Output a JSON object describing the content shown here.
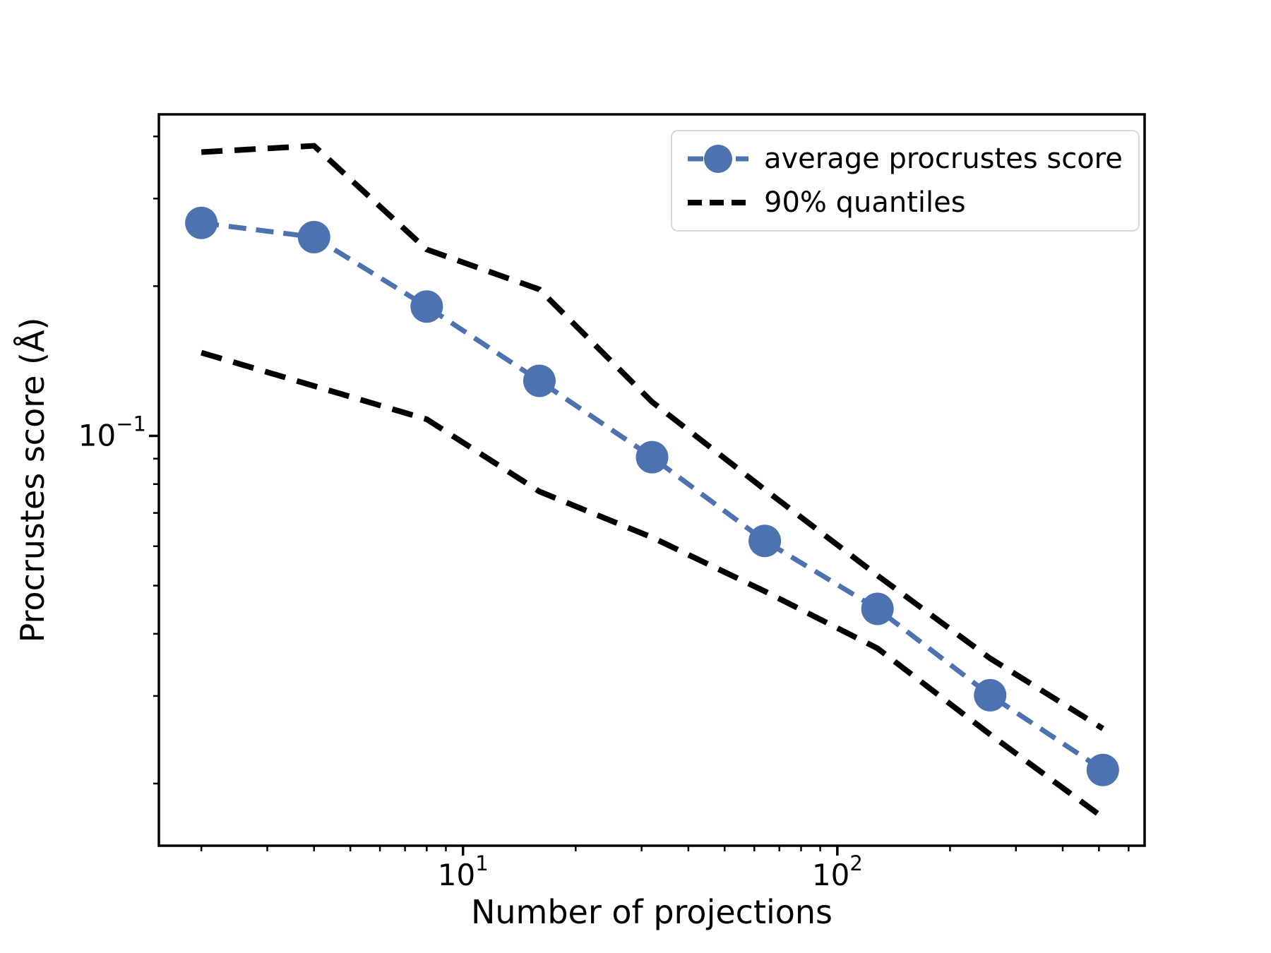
{
  "figure": {
    "background": "#ffffff"
  },
  "chart_data": {
    "type": "line",
    "x_scale": "log",
    "y_scale": "log",
    "x": [
      2,
      4,
      8,
      16,
      32,
      64,
      128,
      256,
      512
    ],
    "series": [
      {
        "name": "average procrustes score",
        "values": [
          0.268,
          0.251,
          0.182,
          0.129,
          0.0906,
          0.0615,
          0.0449,
          0.0301,
          0.0213
        ],
        "color": "#4C72B0",
        "style": "dashed-line-with-circle-markers"
      },
      {
        "name": "90% quantile (upper)",
        "values": [
          0.372,
          0.383,
          0.237,
          0.197,
          0.117,
          0.078,
          0.0524,
          0.0357,
          0.0258
        ],
        "color": "#000000",
        "style": "dashed-line"
      },
      {
        "name": "90% quantile (lower)",
        "values": [
          0.147,
          0.126,
          0.108,
          0.0773,
          0.0625,
          0.0487,
          0.0374,
          0.0251,
          0.0171
        ],
        "color": "#000000",
        "style": "dashed-line"
      }
    ],
    "xlabel": "Number of projections",
    "ylabel": "Procrustes score (Å)",
    "xlim": [
      1.54,
      662
    ],
    "ylim": [
      0.015,
      0.443
    ],
    "x_ticks": [
      {
        "value": 10,
        "base": "10",
        "exp": "1"
      },
      {
        "value": 100,
        "base": "10",
        "exp": "2"
      }
    ],
    "y_ticks": [
      {
        "value": 0.1,
        "base": "10",
        "exp": "−1"
      }
    ],
    "grid": false,
    "legend": {
      "position": "upper right",
      "entries": [
        {
          "label": "average procrustes score"
        },
        {
          "label": "90% quantiles"
        }
      ]
    }
  }
}
